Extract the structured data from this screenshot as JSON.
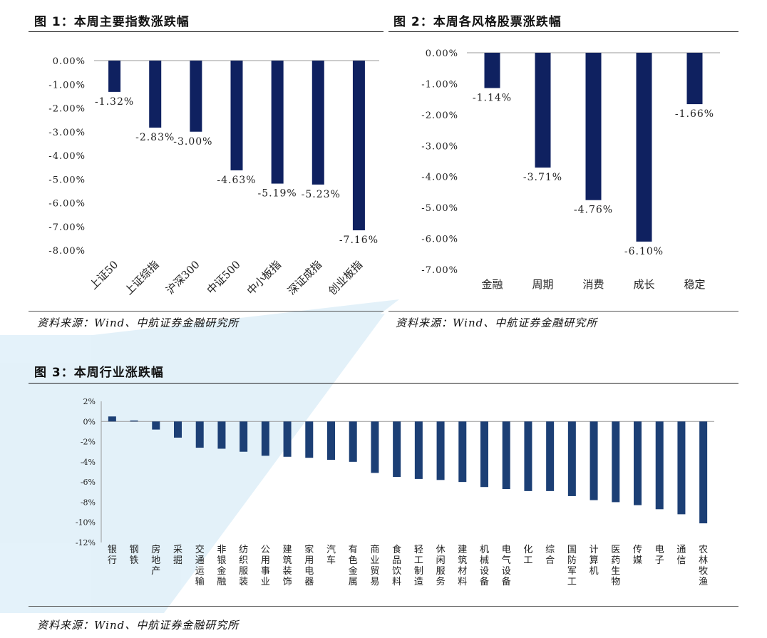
{
  "colors": {
    "bar_dark": "#0f2160",
    "bar_industry": "#1c3f75",
    "watermark": "#5aaee0"
  },
  "figure1": {
    "title": "图 1：本周主要指数涨跌幅",
    "source": "资料来源：Wind、中航证券金融研究所",
    "chart_data": {
      "type": "bar",
      "categories": [
        "上证50",
        "上证综指",
        "沪深300",
        "中证500",
        "中小板指",
        "深证成指",
        "创业板指"
      ],
      "values": [
        -1.32,
        -2.83,
        -3.0,
        -4.63,
        -5.19,
        -5.23,
        -7.16
      ],
      "data_labels": [
        "-1.32%",
        "-2.83%",
        "-3.00%",
        "-4.63%",
        "-5.19%",
        "-5.23%",
        "-7.16%"
      ],
      "ylim": [
        -8,
        0
      ],
      "yticks": [
        "0.00%",
        "-1.00%",
        "-2.00%",
        "-3.00%",
        "-4.00%",
        "-5.00%",
        "-6.00%",
        "-7.00%",
        "-8.00%"
      ],
      "grid": false
    }
  },
  "figure2": {
    "title": "图 2：本周各风格股票涨跌幅",
    "source": "资料来源：Wind、中航证券金融研究所",
    "chart_data": {
      "type": "bar",
      "categories": [
        "金融",
        "周期",
        "消费",
        "成长",
        "稳定"
      ],
      "values": [
        -1.14,
        -3.71,
        -4.76,
        -6.1,
        -1.66
      ],
      "data_labels": [
        "-1.14%",
        "-3.71%",
        "-4.76%",
        "-6.10%",
        "-1.66%"
      ],
      "ylim": [
        -7,
        0
      ],
      "yticks": [
        "0.00%",
        "-1.00%",
        "-2.00%",
        "-3.00%",
        "-4.00%",
        "-5.00%",
        "-6.00%",
        "-7.00%"
      ],
      "grid": false
    }
  },
  "figure3": {
    "title": "图 3：本周行业涨跌幅",
    "source": "资料来源：Wind、中航证券金融研究所",
    "chart_data": {
      "type": "bar",
      "categories": [
        "银行",
        "钢铁",
        "房地产",
        "采掘",
        "交通运输",
        "非银金融",
        "纺织服装",
        "公用事业",
        "建筑装饰",
        "家用电器",
        "汽车",
        "有色金属",
        "商业贸易",
        "食品饮料",
        "轻工制造",
        "休闲服务",
        "建筑材料",
        "机械设备",
        "电气设备",
        "化工",
        "综合",
        "国防军工",
        "计算机",
        "医药生物",
        "传媒",
        "电子",
        "通信",
        "农林牧渔"
      ],
      "values": [
        0.5,
        0.1,
        -0.8,
        -1.6,
        -2.6,
        -2.7,
        -3.0,
        -3.4,
        -3.5,
        -3.6,
        -3.8,
        -4.0,
        -5.1,
        -5.5,
        -5.7,
        -5.8,
        -6.0,
        -6.5,
        -6.7,
        -6.9,
        -6.9,
        -7.4,
        -7.8,
        -8.0,
        -8.3,
        -8.7,
        -9.2,
        -10.1
      ],
      "ylim": [
        -12,
        2
      ],
      "yticks": [
        "2%",
        "0%",
        "-2%",
        "-4%",
        "-6%",
        "-8%",
        "-10%",
        "-12%"
      ],
      "grid": false
    }
  }
}
